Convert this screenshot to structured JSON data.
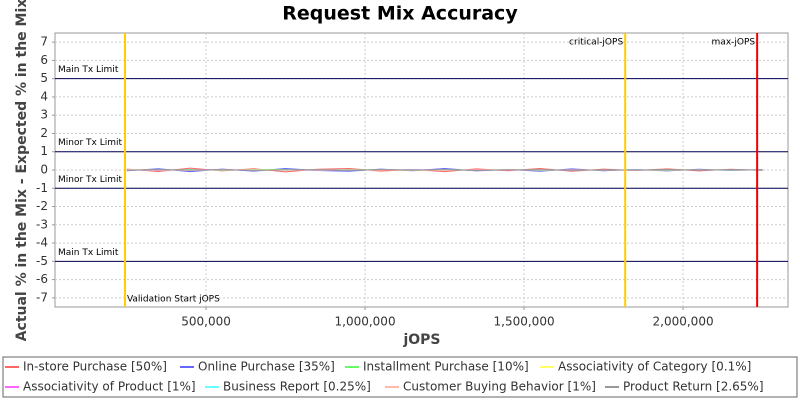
{
  "chart_data": {
    "type": "line",
    "title": "Request Mix Accuracy",
    "x_label": "jOPS",
    "y_label": "Actual % in the Mix - Expected % in the Mix",
    "x": [
      250000,
      350000,
      450000,
      550000,
      650000,
      750000,
      850000,
      950000,
      1050000,
      1150000,
      1250000,
      1350000,
      1450000,
      1550000,
      1650000,
      1750000,
      1850000,
      1950000,
      2050000,
      2150000,
      2250000
    ],
    "series": [
      {
        "name": "In-store Purchase [50%]",
        "color": "#ff6666",
        "values": [
          0.05,
          -0.08,
          0.1,
          -0.05,
          0.07,
          -0.1,
          0.04,
          0.08,
          -0.06,
          0.03,
          -0.09,
          0.06,
          -0.04,
          0.08,
          -0.07,
          0.05,
          -0.03,
          0.06,
          -0.05,
          0.04,
          -0.02
        ]
      },
      {
        "name": "Online Purchase [35%]",
        "color": "#6666ff",
        "values": [
          -0.04,
          0.07,
          -0.09,
          0.05,
          -0.06,
          0.08,
          -0.03,
          -0.07,
          0.05,
          -0.04,
          0.08,
          -0.05,
          0.03,
          -0.07,
          0.06,
          -0.04,
          0.03,
          -0.05,
          0.04,
          -0.03,
          0.02
        ]
      },
      {
        "name": "Installment Purchase [10%]",
        "color": "#66ff66",
        "values": [
          0.02,
          -0.03,
          0.03,
          -0.02,
          0.02,
          0.03,
          -0.02,
          0.02,
          0.01,
          -0.02,
          0.02,
          -0.01,
          0.02,
          -0.02,
          0.01,
          -0.01,
          0.01,
          -0.02,
          0.01,
          -0.01,
          0.01
        ]
      },
      {
        "name": "Associativity of Category [0.1%]",
        "color": "#ffff66",
        "values": [
          0.0,
          0.01,
          -0.01,
          0.0,
          0.01,
          0.0,
          -0.01,
          0.0,
          0.01,
          0.0,
          -0.01,
          0.0,
          0.0,
          0.01,
          0.0,
          -0.01,
          0.0,
          0.0,
          0.01,
          0.0,
          0.0
        ]
      },
      {
        "name": "Associativity of Product [1%]",
        "color": "#ff66ff",
        "values": [
          0.01,
          -0.02,
          0.01,
          0.02,
          -0.01,
          0.01,
          -0.02,
          0.01,
          0.0,
          0.02,
          -0.01,
          0.01,
          -0.01,
          0.0,
          0.01,
          -0.01,
          0.01,
          0.0,
          -0.01,
          0.01,
          0.0
        ]
      },
      {
        "name": "Business Report [0.25%]",
        "color": "#66ffff",
        "values": [
          -0.01,
          0.01,
          0.0,
          -0.01,
          0.01,
          0.0,
          0.01,
          -0.01,
          0.0,
          0.01,
          0.0,
          -0.01,
          0.01,
          0.0,
          -0.01,
          0.0,
          0.01,
          0.0,
          0.0,
          -0.01,
          0.0
        ]
      },
      {
        "name": "Customer Buying Behavior [1%]",
        "color": "#ffbbaa",
        "values": [
          0.02,
          0.01,
          -0.02,
          0.01,
          0.0,
          -0.01,
          0.02,
          -0.01,
          0.01,
          -0.02,
          0.01,
          0.0,
          0.02,
          -0.01,
          0.0,
          0.01,
          -0.02,
          0.01,
          0.0,
          0.01,
          -0.01
        ]
      },
      {
        "name": "Product Return [2.65%]",
        "color": "#999999",
        "values": [
          -0.02,
          0.03,
          -0.01,
          0.02,
          -0.03,
          0.01,
          0.02,
          -0.02,
          0.03,
          -0.01,
          0.02,
          -0.03,
          0.01,
          0.02,
          -0.02,
          0.01,
          -0.01,
          0.02,
          -0.01,
          0.02,
          -0.01
        ]
      }
    ],
    "xlim": [
      25000,
      2330000
    ],
    "ylim": [
      -7.5,
      7.5
    ],
    "xticks": [
      {
        "value": 500000,
        "label": "500,000"
      },
      {
        "value": 1000000,
        "label": "1,000,000"
      },
      {
        "value": 1500000,
        "label": "1,500,000"
      },
      {
        "value": 2000000,
        "label": "2,000,000"
      }
    ],
    "yticks": [
      -7,
      -6,
      -5,
      -4,
      -3,
      -2,
      -1,
      0,
      1,
      2,
      3,
      4,
      5,
      6,
      7
    ],
    "grid": true,
    "markers": [
      {
        "label": "Validation Start jOPS",
        "x": 245000,
        "color": "#ffcc00",
        "label_position": "bottom"
      },
      {
        "label": "critical-jOPS",
        "x": 1818000,
        "color": "#ffcc00",
        "label_position": "top"
      },
      {
        "label": "max-jOPS",
        "x": 2233000,
        "color": "#ee0000",
        "label_position": "top"
      }
    ],
    "limits": [
      {
        "label": "Main Tx Limit",
        "y": 5
      },
      {
        "label": "Minor Tx Limit",
        "y": 1
      },
      {
        "label": "Minor Tx Limit",
        "y": -1
      },
      {
        "label": "Main Tx Limit",
        "y": -5
      }
    ]
  }
}
